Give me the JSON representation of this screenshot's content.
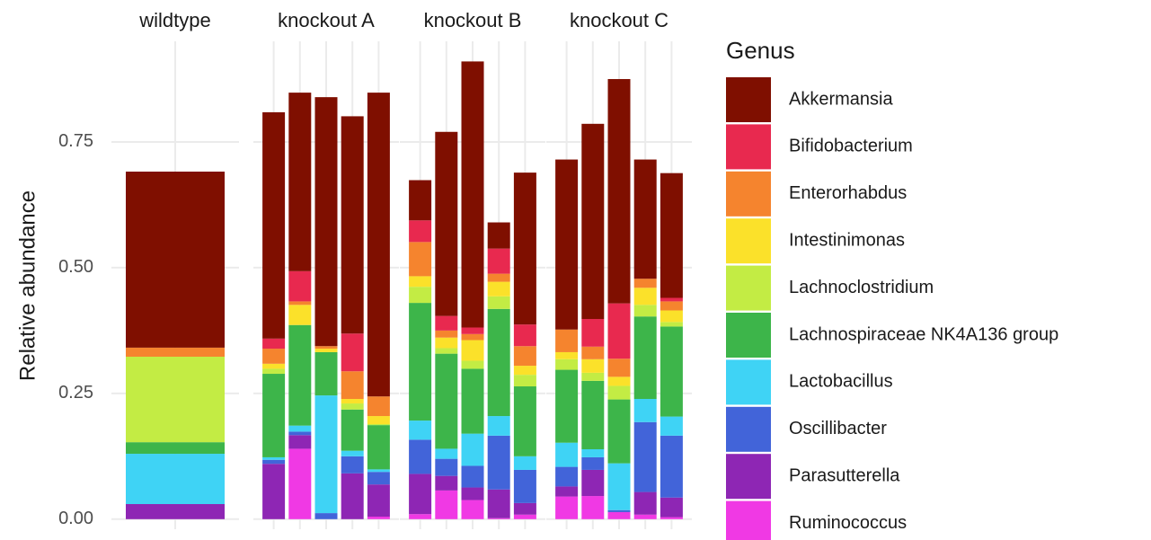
{
  "chart_data": {
    "type": "bar",
    "stacked": true,
    "ylabel": "Relative abundance",
    "legend_title": "Genus",
    "legend": "right",
    "grid": true,
    "ylim": [
      -0.02,
      0.95
    ],
    "yticks": [
      {
        "value": 0,
        "label": "0.00"
      },
      {
        "value": 0.25,
        "label": "0.25"
      },
      {
        "value": 0.5,
        "label": "0.50"
      },
      {
        "value": 0.75,
        "label": "0.75"
      }
    ],
    "facets": [
      {
        "title": "wildtype",
        "categories": [
          null
        ]
      },
      {
        "title": "knockout A",
        "categories": [
          null,
          null,
          null,
          null,
          null
        ]
      },
      {
        "title": "knockout B",
        "categories": [
          null,
          null,
          null,
          null,
          null
        ]
      },
      {
        "title": "knockout C",
        "categories": [
          null,
          null,
          null,
          null,
          null
        ]
      }
    ],
    "series": [
      {
        "name": "Akkermansia",
        "color": "#7f0f00",
        "values": [
          0.35,
          0.45,
          0.355,
          0.495,
          0.432,
          0.604,
          0.08,
          0.366,
          0.529,
          0.052,
          0.302,
          0.338,
          0.388,
          0.446,
          0.237,
          0.248
        ]
      },
      {
        "name": "Bifidobacterium",
        "color": "#e8294f",
        "values": [
          0,
          0.02,
          0.06,
          0,
          0.075,
          0,
          0.043,
          0.029,
          0.013,
          0.05,
          0.043,
          0,
          0.055,
          0.11,
          0,
          0.007
        ]
      },
      {
        "name": "Enterorhabdus",
        "color": "#f5842e",
        "values": [
          0.018,
          0.03,
          0.007,
          0.005,
          0.055,
          0.039,
          0.068,
          0.014,
          0.012,
          0.016,
          0.039,
          0.045,
          0.025,
          0.036,
          0.018,
          0.018
        ]
      },
      {
        "name": "Intestinimonas",
        "color": "#fbe12a",
        "values": [
          0,
          0.01,
          0.04,
          0.007,
          0.009,
          0.016,
          0.021,
          0.021,
          0.041,
          0.029,
          0.018,
          0.014,
          0.027,
          0.018,
          0.034,
          0.023
        ]
      },
      {
        "name": "Lachnoclostridium",
        "color": "#c3ec44",
        "values": [
          0.17,
          0.01,
          0,
          0,
          0.012,
          0.002,
          0.032,
          0.011,
          0.016,
          0.025,
          0.023,
          0.021,
          0.016,
          0.027,
          0.023,
          0.009
        ]
      },
      {
        "name": "Lachnospiraceae NK4A136 group",
        "color": "#3db54a",
        "values": [
          0.023,
          0.166,
          0.2,
          0.086,
          0.082,
          0.088,
          0.234,
          0.189,
          0.129,
          0.213,
          0.139,
          0.145,
          0.136,
          0.127,
          0.164,
          0.179
        ]
      },
      {
        "name": "Lactobacillus",
        "color": "#3fd3f5",
        "values": [
          0.1,
          0.005,
          0.012,
          0.234,
          0.011,
          0.005,
          0.038,
          0.02,
          0.064,
          0.039,
          0.027,
          0.048,
          0.016,
          0.093,
          0.046,
          0.038
        ]
      },
      {
        "name": "Oscillibacter",
        "color": "#4264d9",
        "values": [
          0,
          0.008,
          0.007,
          0.012,
          0.034,
          0.025,
          0.068,
          0.034,
          0.043,
          0.107,
          0.066,
          0.039,
          0.025,
          0.004,
          0.139,
          0.123
        ]
      },
      {
        "name": "Parasutterella",
        "color": "#8e26b4",
        "values": [
          0.03,
          0.11,
          0.027,
          0,
          0.091,
          0.064,
          0.08,
          0.029,
          0.025,
          0.057,
          0.023,
          0.02,
          0.052,
          0,
          0.045,
          0.039
        ]
      },
      {
        "name": "Ruminococcus",
        "color": "#f039e4",
        "values": [
          0,
          0,
          0.14,
          0,
          0,
          0.005,
          0.01,
          0.057,
          0.038,
          0.002,
          0.009,
          0.045,
          0.046,
          0.014,
          0.009,
          0.004
        ]
      }
    ]
  }
}
